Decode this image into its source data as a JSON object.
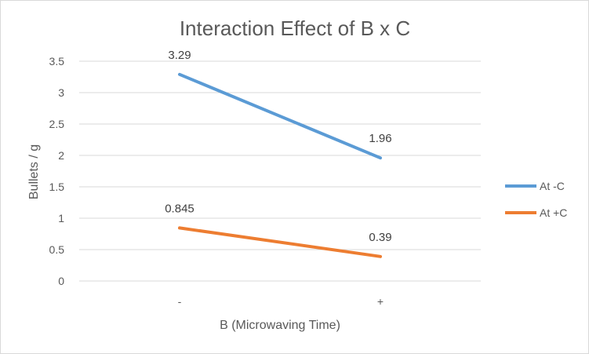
{
  "chart_data": {
    "type": "line",
    "title": "Interaction Effect of B x C",
    "xlabel": "B (Microwaving Time)",
    "ylabel": "Bullets / g",
    "categories": [
      "-",
      "+"
    ],
    "ylim": [
      0,
      3.5
    ],
    "yticks": [
      "0",
      "0.5",
      "1",
      "1.5",
      "2",
      "2.5",
      "3",
      "3.5"
    ],
    "grid": true,
    "legend_position": "right",
    "series": [
      {
        "name": "At -C",
        "values": [
          3.29,
          1.96
        ],
        "labels": [
          "3.29",
          "1.96"
        ],
        "color": "#5B9BD5"
      },
      {
        "name": "At +C",
        "values": [
          0.845,
          0.39
        ],
        "labels": [
          "0.845",
          "0.39"
        ],
        "color": "#ED7D31"
      }
    ]
  }
}
